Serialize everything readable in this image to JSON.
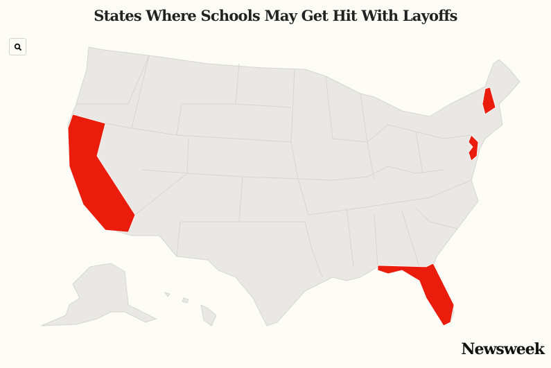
{
  "title": "States Where Schools May Get Hit With Layoffs",
  "search_button": {
    "icon": "search-icon"
  },
  "map": {
    "highlighted_states": [
      "California",
      "Florida",
      "New Jersey",
      "New Hampshire"
    ],
    "colors": {
      "highlight": "#ea1d0c",
      "land": "#e9e8e4",
      "border": "#d6d5d0",
      "background": "#fdfcf7"
    }
  },
  "logo": "Newsweek"
}
